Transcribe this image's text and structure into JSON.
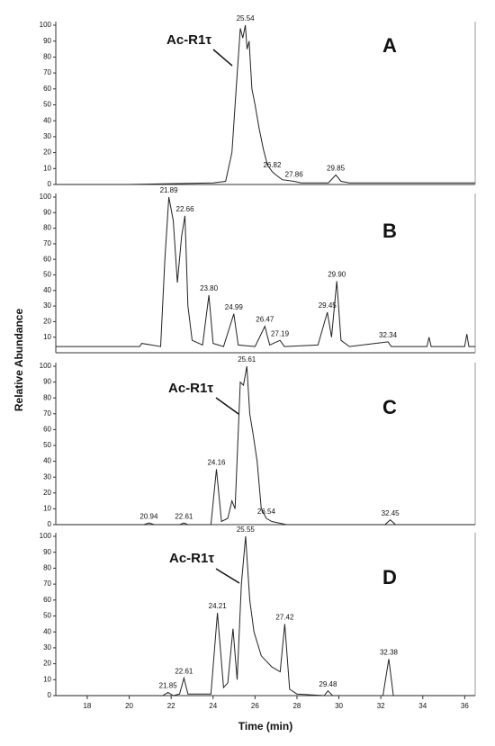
{
  "y_label": "Relative Abundance",
  "chart_data": [
    {
      "type": "line",
      "label": "A",
      "annotation": "Ac-R1τ",
      "xlim": [
        16.5,
        36.5
      ],
      "ylim": [
        0,
        100
      ],
      "yticks": [
        0,
        10,
        20,
        30,
        40,
        50,
        60,
        70,
        80,
        90,
        100
      ],
      "x": [
        16.5,
        20,
        22,
        24,
        24.6,
        24.9,
        25.1,
        25.3,
        25.42,
        25.54,
        25.62,
        25.72,
        25.85,
        26.0,
        26.2,
        26.4,
        26.6,
        26.82,
        27.0,
        27.3,
        27.86,
        28.2,
        29.5,
        29.85,
        30.1,
        30.5,
        33,
        36.5
      ],
      "series": [
        {
          "color": "#222222",
          "values": [
            0,
            0,
            0.5,
            1,
            2,
            20,
            60,
            98,
            92,
            100,
            85,
            90,
            60,
            50,
            35,
            22,
            12,
            8,
            6,
            3,
            2,
            1,
            1,
            6,
            2,
            1,
            1,
            1
          ]
        }
      ],
      "peaks": [
        {
          "x": 25.54,
          "y": 100
        },
        {
          "x": 26.82,
          "y": 8
        },
        {
          "x": 27.86,
          "y": 2
        },
        {
          "x": 29.85,
          "y": 6
        }
      ]
    },
    {
      "type": "line",
      "label": "B",
      "xlim": [
        16.5,
        36.5
      ],
      "ylim": [
        0,
        100
      ],
      "yticks": [
        10,
        20,
        30,
        40,
        50,
        60,
        70,
        80,
        90,
        100
      ],
      "x": [
        16.5,
        18,
        20.5,
        20.6,
        21.5,
        21.7,
        21.89,
        22.1,
        22.3,
        22.5,
        22.66,
        22.8,
        23.0,
        23.5,
        23.8,
        24.0,
        24.5,
        24.99,
        25.2,
        26.0,
        26.47,
        26.7,
        27.19,
        27.4,
        29.0,
        29.45,
        29.65,
        29.9,
        30.1,
        30.5,
        32.34,
        32.5,
        34.2,
        34.3,
        34.4,
        36.0,
        36.1,
        36.2,
        36.5
      ],
      "series": [
        {
          "color": "#222222",
          "values": [
            4,
            4,
            4,
            6,
            4,
            60,
            100,
            85,
            45,
            75,
            88,
            30,
            8,
            5,
            37,
            6,
            4,
            25,
            5,
            4,
            17,
            5,
            8,
            4,
            5,
            26,
            10,
            46,
            8,
            4,
            7,
            4,
            4,
            10,
            4,
            4,
            12,
            4,
            4
          ]
        }
      ],
      "peaks": [
        {
          "x": 21.89,
          "y": 100
        },
        {
          "x": 22.66,
          "y": 88
        },
        {
          "x": 23.8,
          "y": 37,
          "label": "23.80"
        },
        {
          "x": 24.99,
          "y": 25
        },
        {
          "x": 26.47,
          "y": 17
        },
        {
          "x": 27.19,
          "y": 8
        },
        {
          "x": 29.45,
          "y": 26
        },
        {
          "x": 29.9,
          "y": 46,
          "label": "29.90"
        },
        {
          "x": 32.34,
          "y": 7
        }
      ]
    },
    {
      "type": "line",
      "label": "C",
      "annotation": "Ac-R1τ",
      "xlim": [
        16.5,
        36.5
      ],
      "ylim": [
        0,
        100
      ],
      "yticks": [
        0,
        10,
        20,
        30,
        40,
        50,
        60,
        70,
        80,
        90,
        100
      ],
      "x": [
        16.5,
        20.7,
        20.94,
        21.2,
        22.4,
        22.61,
        22.8,
        23.9,
        24.16,
        24.4,
        24.7,
        24.9,
        25.05,
        25.3,
        25.45,
        25.61,
        25.75,
        25.9,
        26.1,
        26.3,
        26.54,
        26.8,
        27.5,
        32.2,
        32.45,
        32.7,
        36.5
      ],
      "series": [
        {
          "color": "#222222",
          "values": [
            0,
            0,
            1,
            0,
            0,
            1,
            0,
            0,
            35,
            2,
            4,
            15,
            10,
            90,
            88,
            100,
            70,
            58,
            40,
            10,
            4,
            2,
            0,
            0,
            3,
            0,
            0
          ]
        }
      ],
      "peaks": [
        {
          "x": 20.94,
          "y": 1
        },
        {
          "x": 22.61,
          "y": 1
        },
        {
          "x": 24.16,
          "y": 35
        },
        {
          "x": 25.61,
          "y": 100
        },
        {
          "x": 26.54,
          "y": 4
        },
        {
          "x": 32.45,
          "y": 3
        }
      ]
    },
    {
      "type": "line",
      "label": "D",
      "annotation": "Ac-R1τ",
      "x_label": "Time (min)",
      "xlim": [
        16.5,
        36.5
      ],
      "ylim": [
        0,
        100
      ],
      "yticks": [
        0,
        10,
        20,
        30,
        40,
        50,
        60,
        70,
        80,
        90,
        100
      ],
      "xticks": [
        18,
        20,
        22,
        24,
        26,
        28,
        30,
        32,
        34,
        36
      ],
      "x": [
        16.5,
        21.6,
        21.85,
        22.1,
        22.4,
        22.61,
        22.8,
        23.9,
        24.21,
        24.5,
        24.7,
        24.95,
        25.15,
        25.35,
        25.55,
        25.75,
        25.95,
        26.3,
        26.8,
        27.2,
        27.42,
        27.65,
        28,
        29.3,
        29.48,
        29.7,
        32.1,
        32.38,
        32.6,
        36.5
      ],
      "series": [
        {
          "color": "#222222",
          "values": [
            0,
            0,
            2,
            0,
            1,
            11,
            1,
            1,
            52,
            5,
            8,
            42,
            10,
            70,
            100,
            60,
            40,
            25,
            18,
            15,
            45,
            4,
            1,
            0,
            3,
            0,
            0,
            23,
            0,
            0
          ]
        }
      ],
      "peaks": [
        {
          "x": 21.85,
          "y": 2
        },
        {
          "x": 22.61,
          "y": 11
        },
        {
          "x": 24.21,
          "y": 52
        },
        {
          "x": 25.55,
          "y": 100
        },
        {
          "x": 27.42,
          "y": 45
        },
        {
          "x": 29.48,
          "y": 3
        },
        {
          "x": 32.38,
          "y": 23
        }
      ]
    }
  ]
}
